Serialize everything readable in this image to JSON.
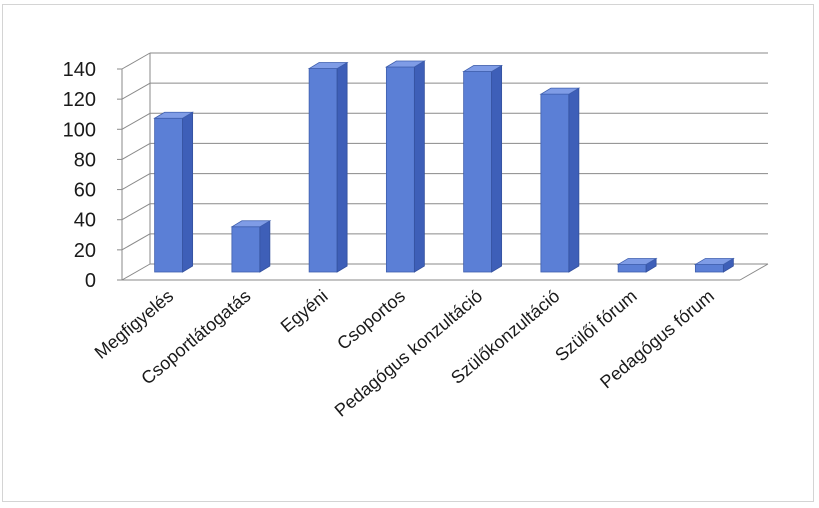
{
  "chart_data": {
    "type": "bar",
    "title": "",
    "xlabel": "",
    "ylabel": "",
    "ylim": [
      0,
      140
    ],
    "yticks": [
      0,
      20,
      40,
      60,
      80,
      100,
      120,
      140
    ],
    "grid": true,
    "legend": "none",
    "bar_color": "#5b7fd6",
    "categories": [
      "Megfigyelés",
      "Csoportlátogatás",
      "Egyéni",
      "Csoportos",
      "Pedagógus konzultáció",
      "Szülőkonzultáció",
      "Szülői fórum",
      "Pedagógus fórum"
    ],
    "values": [
      102,
      30,
      135,
      136,
      133,
      118,
      5,
      5
    ]
  }
}
